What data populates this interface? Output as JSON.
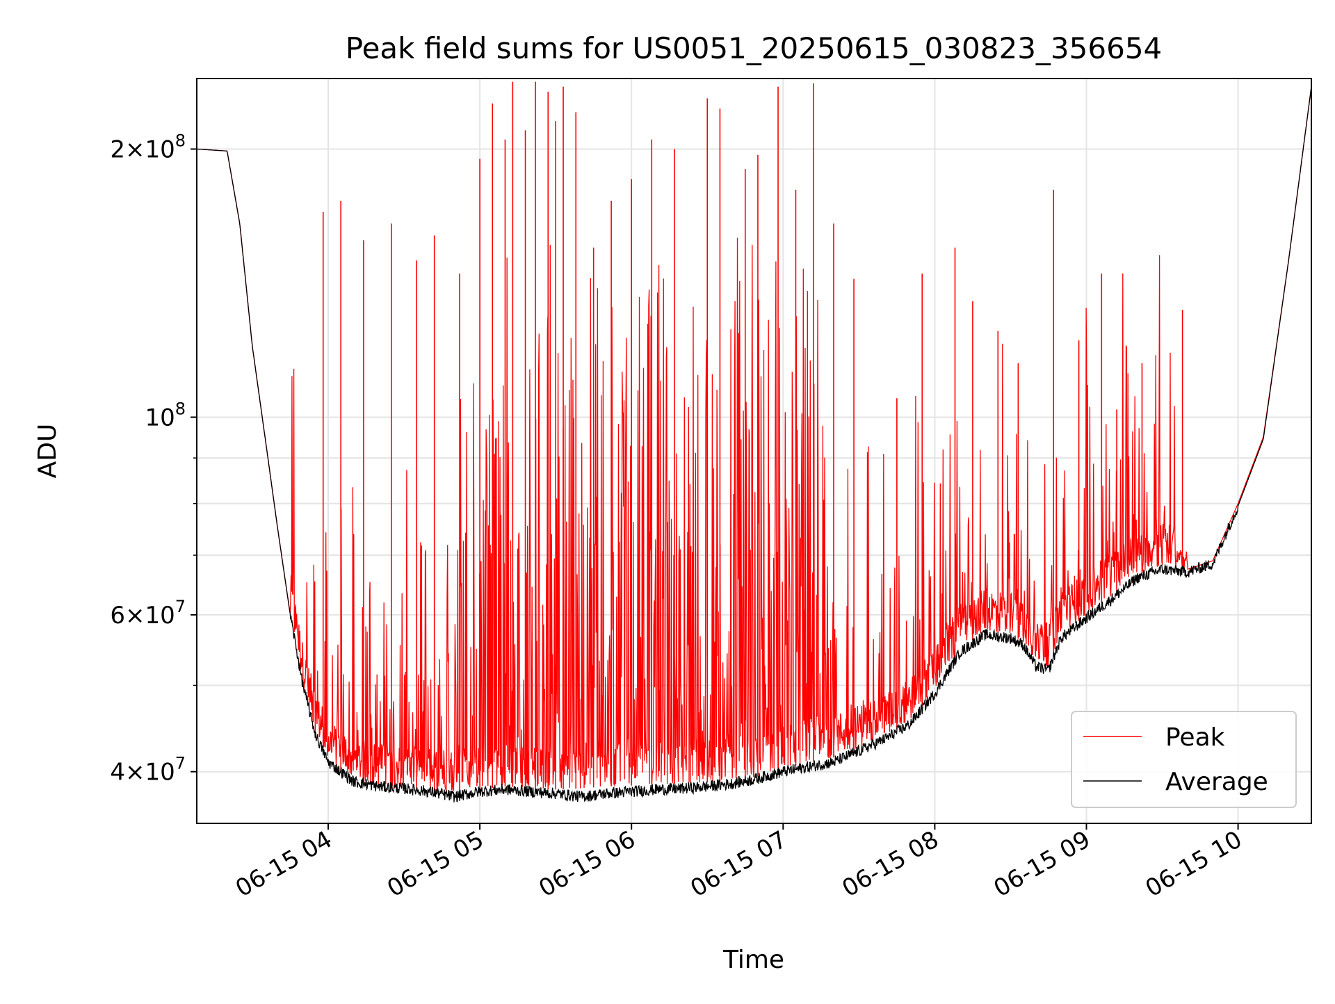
{
  "chart_data": {
    "type": "line",
    "title": "Peak field sums for US0051_20250615_030823_356654",
    "xlabel": "Time",
    "ylabel": "ADU",
    "yscale": "log",
    "ylim": [
      35000000,
      240000000
    ],
    "xlim": [
      "06-15 03:08",
      "06-15 10:29"
    ],
    "grid": true,
    "legend_position": "lower right",
    "x_ticks": [
      "06-15 04",
      "06-15 05",
      "06-15 06",
      "06-15 07",
      "06-15 08",
      "06-15 09",
      "06-15 10"
    ],
    "y_ticks": [
      {
        "value": 40000000,
        "mant": "4",
        "exp": "7"
      },
      {
        "value": 60000000,
        "mant": "6",
        "exp": "7"
      },
      {
        "value": 100000000,
        "mant": "",
        "exp": "8"
      },
      {
        "value": 200000000,
        "mant": "2",
        "exp": "8"
      }
    ],
    "series": [
      {
        "name": "Peak",
        "color": "#ff0000",
        "x": [
          "06-15 03:08",
          "06-15 03:20",
          "06-15 03:25",
          "06-15 03:30",
          "06-15 03:35",
          "06-15 03:40",
          "06-15 03:45",
          "06-15 03:50",
          "06-15 03:55",
          "06-15 04:00",
          "06-15 04:10",
          "06-15 04:20",
          "06-15 04:30",
          "06-15 04:40",
          "06-15 04:50",
          "06-15 05:00",
          "06-15 05:10",
          "06-15 05:20",
          "06-15 05:30",
          "06-15 05:40",
          "06-15 05:50",
          "06-15 06:00",
          "06-15 06:10",
          "06-15 06:20",
          "06-15 06:30",
          "06-15 06:40",
          "06-15 06:50",
          "06-15 07:00",
          "06-15 07:10",
          "06-15 07:20",
          "06-15 07:30",
          "06-15 07:40",
          "06-15 07:50",
          "06-15 08:00",
          "06-15 08:10",
          "06-15 08:20",
          "06-15 08:30",
          "06-15 08:35",
          "06-15 08:40",
          "06-15 08:45",
          "06-15 08:50",
          "06-15 09:00",
          "06-15 09:10",
          "06-15 09:20",
          "06-15 09:30",
          "06-15 09:40",
          "06-15 09:50",
          "06-15 10:00",
          "06-15 10:10",
          "06-15 10:20",
          "06-15 10:29"
        ],
        "y": [
          200000000,
          199000000,
          165000000,
          120000000,
          95000000,
          75000000,
          60000000,
          50000000,
          44000000,
          41000000,
          39000000,
          38500000,
          38300000,
          38000000,
          38000000,
          38200000,
          38500000,
          38300000,
          38200000,
          38300000,
          38500000,
          38600000,
          38700000,
          38800000,
          38900000,
          39100000,
          39500000,
          40300000,
          41000000,
          41500000,
          42500000,
          43800000,
          45500000,
          49500000,
          55000000,
          57500000,
          57000000,
          56000000,
          53000000,
          52500000,
          57000000,
          60000000,
          63000000,
          66500000,
          68000000,
          67500000,
          69000000,
          80000000,
          95000000,
          150000000,
          235000000
        ],
        "spikes": {
          "x": [
            "06-15 03:58",
            "06-15 04:05",
            "06-15 04:14",
            "06-15 04:25",
            "06-15 04:35",
            "06-15 04:42",
            "06-15 04:52",
            "06-15 05:00",
            "06-15 05:05",
            "06-15 05:10",
            "06-15 05:13",
            "06-15 05:18",
            "06-15 05:22",
            "06-15 05:27",
            "06-15 05:30",
            "06-15 05:33",
            "06-15 05:38",
            "06-15 05:45",
            "06-15 05:52",
            "06-15 06:00",
            "06-15 06:08",
            "06-15 06:17",
            "06-15 06:30",
            "06-15 06:35",
            "06-15 06:45",
            "06-15 06:50",
            "06-15 06:58",
            "06-15 07:05",
            "06-15 07:12",
            "06-15 07:20",
            "06-15 07:28",
            "06-15 07:45",
            "06-15 07:55",
            "06-15 08:08",
            "06-15 08:15",
            "06-15 08:25",
            "06-15 08:33",
            "06-15 08:47",
            "06-15 08:57",
            "06-15 09:06",
            "06-15 09:12",
            "06-15 09:22",
            "06-15 09:38"
          ],
          "y": [
            170000000,
            175000000,
            158000000,
            165000000,
            150000000,
            160000000,
            145000000,
            195000000,
            225000000,
            205000000,
            238000000,
            210000000,
            238000000,
            232000000,
            215000000,
            235000000,
            220000000,
            155000000,
            175000000,
            185000000,
            205000000,
            200000000,
            228000000,
            222000000,
            190000000,
            197000000,
            235000000,
            180000000,
            237000000,
            165000000,
            143000000,
            105000000,
            145000000,
            155000000,
            135000000,
            125000000,
            115000000,
            180000000,
            122000000,
            145000000,
            102000000,
            115000000,
            132000000
          ]
        }
      },
      {
        "name": "Average",
        "color": "#000000",
        "x": [
          "06-15 03:08",
          "06-15 03:20",
          "06-15 03:25",
          "06-15 03:30",
          "06-15 03:35",
          "06-15 03:40",
          "06-15 03:45",
          "06-15 03:50",
          "06-15 03:55",
          "06-15 04:00",
          "06-15 04:10",
          "06-15 04:20",
          "06-15 04:30",
          "06-15 04:40",
          "06-15 04:50",
          "06-15 05:00",
          "06-15 05:10",
          "06-15 05:20",
          "06-15 05:30",
          "06-15 05:40",
          "06-15 05:50",
          "06-15 06:00",
          "06-15 06:10",
          "06-15 06:20",
          "06-15 06:30",
          "06-15 06:40",
          "06-15 06:50",
          "06-15 07:00",
          "06-15 07:10",
          "06-15 07:20",
          "06-15 07:30",
          "06-15 07:40",
          "06-15 07:50",
          "06-15 08:00",
          "06-15 08:10",
          "06-15 08:20",
          "06-15 08:30",
          "06-15 08:35",
          "06-15 08:40",
          "06-15 08:45",
          "06-15 08:50",
          "06-15 09:00",
          "06-15 09:10",
          "06-15 09:20",
          "06-15 09:30",
          "06-15 09:40",
          "06-15 09:50",
          "06-15 10:00",
          "06-15 10:10",
          "06-15 10:20",
          "06-15 10:29"
        ],
        "y": [
          200000000,
          199000000,
          165000000,
          120000000,
          95000000,
          75000000,
          60000000,
          50000000,
          44000000,
          41000000,
          39000000,
          38500000,
          38300000,
          38000000,
          37500000,
          38000000,
          38200000,
          38000000,
          37800000,
          37500000,
          37800000,
          38000000,
          38200000,
          38300000,
          38500000,
          38800000,
          39300000,
          40000000,
          40500000,
          41000000,
          42200000,
          43500000,
          45200000,
          49000000,
          54500000,
          57000000,
          56500000,
          55500000,
          52500000,
          52000000,
          56500000,
          59500000,
          62500000,
          66000000,
          67500000,
          67000000,
          68500000,
          79500000,
          94500000,
          150000000,
          235000000
        ]
      }
    ]
  }
}
